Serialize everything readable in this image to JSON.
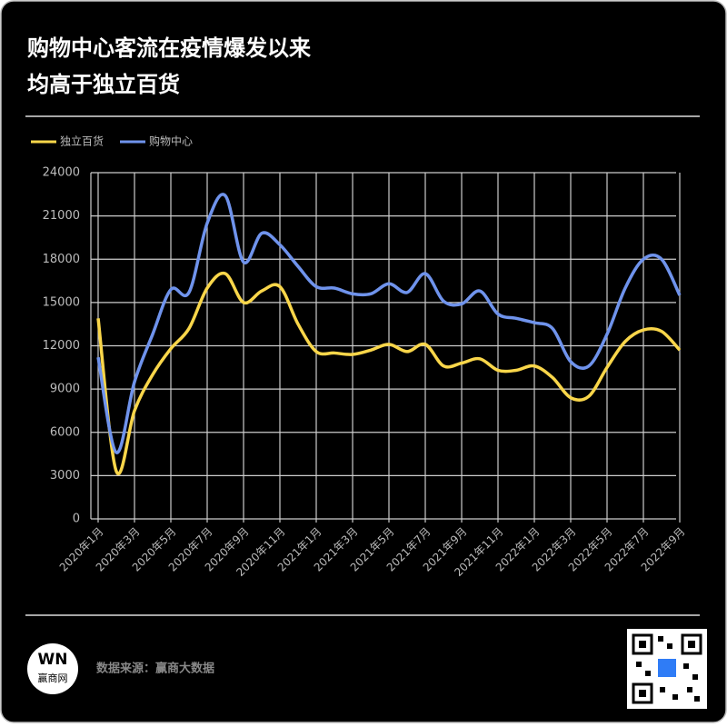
{
  "chart_data": {
    "type": "line",
    "title_lines": [
      "购物中心客流在疫情爆发以来",
      "均高于独立百货"
    ],
    "categories": [
      "2020年1月",
      null,
      "2020年3月",
      null,
      "2020年5月",
      null,
      "2020年7月",
      null,
      "2020年9月",
      null,
      "2020年11月",
      null,
      "2021年1月",
      null,
      "2021年3月",
      null,
      "2021年5月",
      null,
      "2021年7月",
      null,
      "2021年9月",
      null,
      "2021年11月",
      null,
      "2022年1月",
      null,
      "2022年3月",
      null,
      "2022年5月",
      null,
      "2022年7月",
      null,
      "2022年9月"
    ],
    "series": [
      {
        "name": "独立百货",
        "color": "#f9d64a",
        "values": [
          13900,
          3300,
          7500,
          10000,
          11800,
          13200,
          16000,
          17000,
          15000,
          15800,
          16100,
          13500,
          11600,
          11500,
          11400,
          11700,
          12100,
          11600,
          12100,
          10600,
          10800,
          11100,
          10300,
          10300,
          10600,
          9800,
          8400,
          8500,
          10500,
          12300,
          13100,
          13000,
          11700
        ]
      },
      {
        "name": "购物中心",
        "color": "#6f93ec",
        "values": [
          11200,
          4600,
          9500,
          12800,
          15900,
          15700,
          20500,
          22400,
          17800,
          19800,
          19000,
          17500,
          16100,
          16000,
          15600,
          15600,
          16300,
          15700,
          17000,
          15100,
          14900,
          15800,
          14200,
          13900,
          13600,
          13200,
          10900,
          10600,
          12800,
          16000,
          18000,
          18000,
          15500
        ]
      }
    ],
    "ylim": [
      0,
      24000
    ],
    "yticks": [
      0,
      3000,
      6000,
      9000,
      12000,
      15000,
      18000,
      21000,
      24000
    ],
    "grid": true,
    "legend": "top-left",
    "source": "数据来源：赢商大数据",
    "logo": {
      "mark": "WN",
      "name": "赢商网"
    }
  }
}
